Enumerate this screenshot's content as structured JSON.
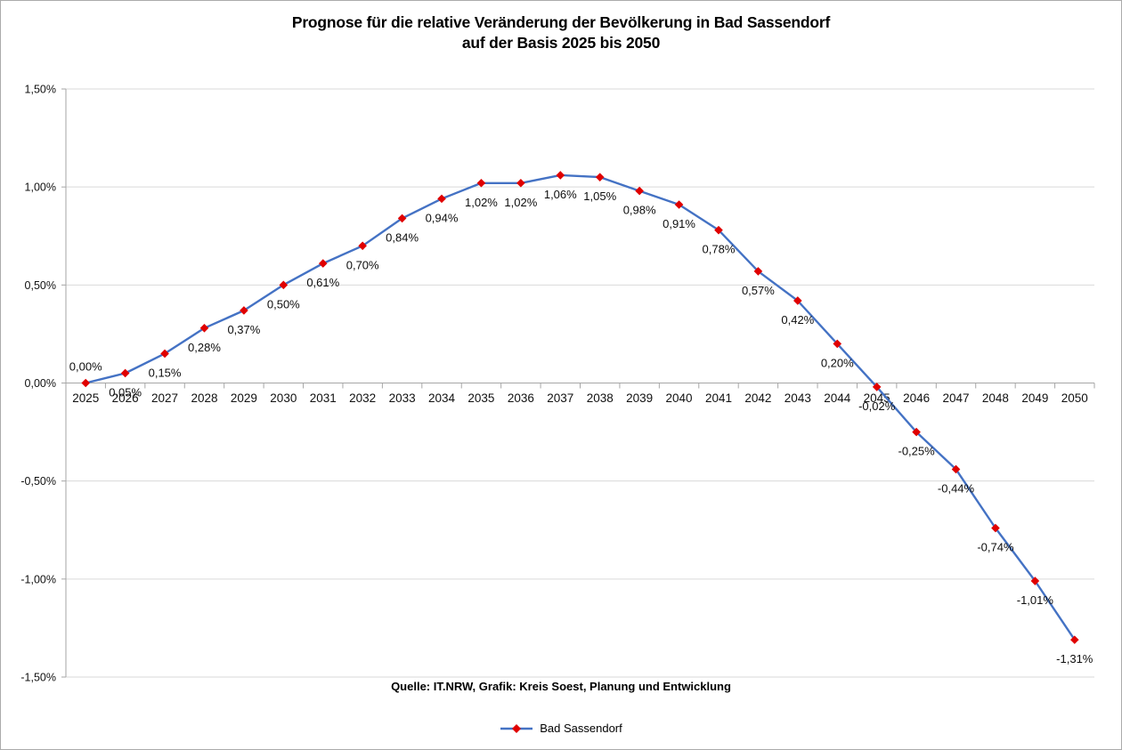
{
  "page": {
    "title_line1": "Prognose für die relative Veränderung der Bevölkerung in Bad Sassendorf",
    "title_line2": "auf der Basis 2025 bis 2050",
    "source_note": "Quelle: IT.NRW, Grafik: Kreis Soest, Planung und Entwicklung"
  },
  "legend": {
    "label": "Bad Sassendorf"
  },
  "colors": {
    "line": "#4472C4",
    "marker": "#E00000",
    "gridline": "#D9D9D9",
    "axis": "#A6A6A6",
    "text": "#000000"
  },
  "chart_data": {
    "type": "line",
    "title": "Prognose für die relative Veränderung der Bevölkerung in Bad Sassendorf auf der Basis 2025 bis 2050",
    "xlabel": "",
    "ylabel": "",
    "ylim": [
      -1.5,
      1.5
    ],
    "grid": true,
    "legend_position": "bottom",
    "categories": [
      "2025",
      "2026",
      "2027",
      "2028",
      "2029",
      "2030",
      "2031",
      "2032",
      "2033",
      "2034",
      "2035",
      "2036",
      "2037",
      "2038",
      "2039",
      "2040",
      "2041",
      "2042",
      "2043",
      "2044",
      "2045",
      "2046",
      "2047",
      "2048",
      "2049",
      "2050"
    ],
    "yticks": [
      {
        "value": 1.5,
        "label": "1,50%"
      },
      {
        "value": 1.0,
        "label": "1,00%"
      },
      {
        "value": 0.5,
        "label": "0,50%"
      },
      {
        "value": 0.0,
        "label": "0,00%"
      },
      {
        "value": -0.5,
        "label": "-0,50%"
      },
      {
        "value": -1.0,
        "label": "-1,00%"
      },
      {
        "value": -1.5,
        "label": "-1,50%"
      }
    ],
    "series": [
      {
        "name": "Bad Sassendorf",
        "values": [
          0.0,
          0.05,
          0.15,
          0.28,
          0.37,
          0.5,
          0.61,
          0.7,
          0.84,
          0.94,
          1.02,
          1.02,
          1.06,
          1.05,
          0.98,
          0.91,
          0.78,
          0.57,
          0.42,
          0.2,
          -0.02,
          -0.25,
          -0.44,
          -0.74,
          -1.01,
          -1.31
        ],
        "labels": [
          "0,00%",
          "0,05%",
          "0,15%",
          "0,28%",
          "0,37%",
          "0,50%",
          "0,61%",
          "0,70%",
          "0,84%",
          "0,94%",
          "1,02%",
          "1,02%",
          "1,06%",
          "1,05%",
          "0,98%",
          "0,91%",
          "0,78%",
          "0,57%",
          "0,42%",
          "0,20%",
          "-0,02%",
          "-0,25%",
          "-0,44%",
          "-0,74%",
          "-1,01%",
          "-1,31%"
        ]
      }
    ]
  }
}
